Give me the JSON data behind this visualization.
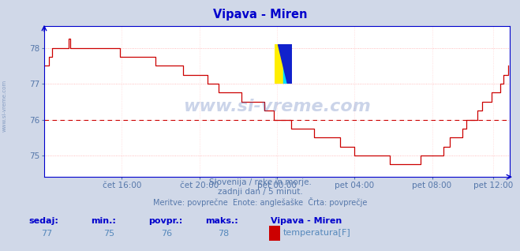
{
  "title": "Vipava - Miren",
  "title_color": "#0000cc",
  "bg_color": "#d0d8e8",
  "plot_bg_color": "#ffffff",
  "line_color": "#cc0000",
  "avg_line_color": "#cc0000",
  "avg_value": 76.0,
  "ylim": [
    74.4,
    78.6
  ],
  "yticks": [
    75,
    76,
    77,
    78
  ],
  "grid_color": "#ffaaaa",
  "grid_vcolor": "#ffcccc",
  "watermark": "www.si-vreme.com",
  "watermark_color": "#3355aa",
  "watermark_alpha": 0.25,
  "subtitle1": "Slovenija / reke in morje.",
  "subtitle2": "zadnji dan / 5 minut.",
  "subtitle3": "Meritve: povprečne  Enote: anglešaške  Črta: povprečje",
  "subtitle_color": "#5577aa",
  "legend_label_headers": [
    "sedaj:",
    "min.:",
    "povpr.:",
    "maks.:"
  ],
  "legend_values": [
    "77",
    "75",
    "76",
    "78"
  ],
  "legend_series_name": "Vipava - Miren",
  "legend_series_label": "temperatura[F]",
  "legend_color": "#cc0000",
  "legend_header_color": "#0000cc",
  "legend_value_color": "#5588bb",
  "axis_color": "#0000cc",
  "tick_color": "#5577aa",
  "ylabel_text": "www.si-vreme.com",
  "ylabel_color": "#5577aa",
  "n_points": 288,
  "x_tick_labels": [
    "čet 16:00",
    "čet 20:00",
    "pet 00:00",
    "pet 04:00",
    "pet 08:00",
    "pet 12:00"
  ],
  "x_tick_positions": [
    48,
    96,
    144,
    192,
    240,
    278
  ]
}
